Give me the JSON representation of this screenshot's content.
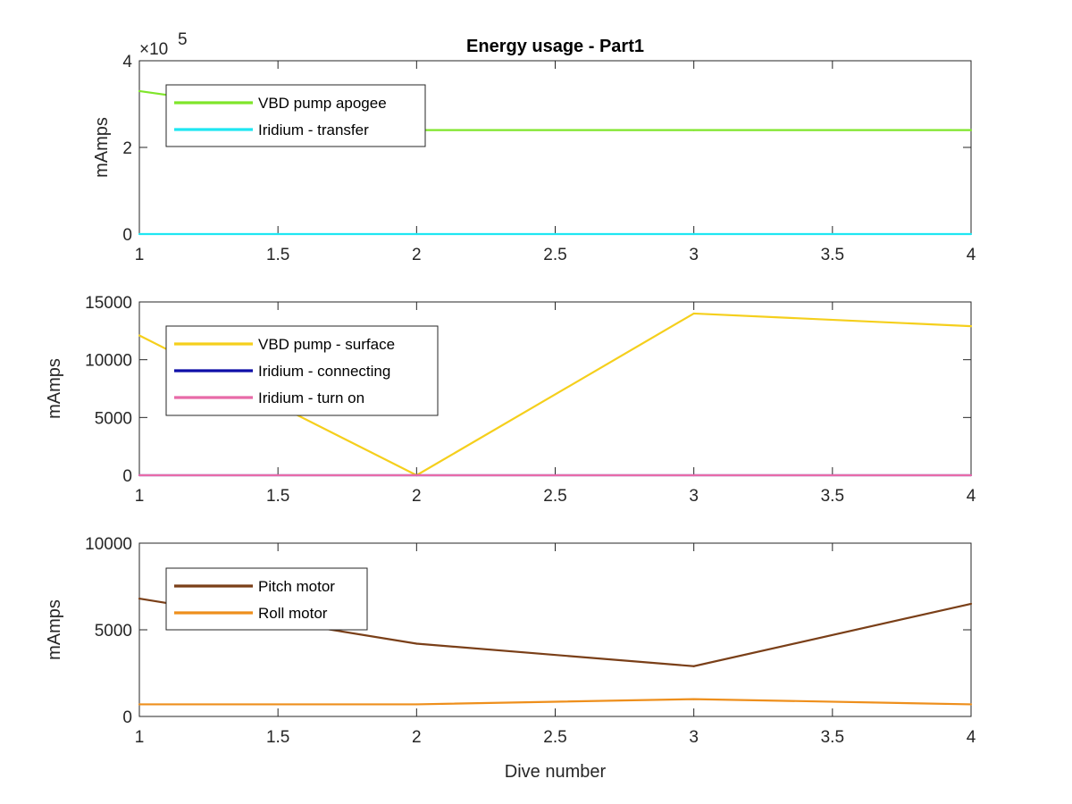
{
  "chart_data": [
    {
      "type": "line",
      "title": "Energy usage - Part1",
      "xlabel": "",
      "ylabel": "mAmps",
      "xlim": [
        1,
        4
      ],
      "ylim": [
        0,
        400000
      ],
      "x_ticks": [
        "1",
        "1.5",
        "2",
        "2.5",
        "3",
        "3.5",
        "4"
      ],
      "y_ticks": [
        "0",
        "2",
        "4"
      ],
      "y_exponent": "×10",
      "y_exponent_power": "5",
      "legend_position": "top-left",
      "x": [
        1,
        2,
        3,
        4
      ],
      "series": [
        {
          "name": "VBD pump apogee",
          "color": "#7fe52a",
          "values": [
            330000,
            240000,
            240000,
            240000
          ]
        },
        {
          "name": "Iridium - transfer",
          "color": "#1fe6f2",
          "values": [
            0,
            0,
            0,
            0
          ]
        }
      ]
    },
    {
      "type": "line",
      "title": "",
      "xlabel": "",
      "ylabel": "mAmps",
      "xlim": [
        1,
        4
      ],
      "ylim": [
        0,
        15000
      ],
      "x_ticks": [
        "1",
        "1.5",
        "2",
        "2.5",
        "3",
        "3.5",
        "4"
      ],
      "y_ticks": [
        "0",
        "5000",
        "10000",
        "15000"
      ],
      "legend_position": "top-left",
      "x": [
        1,
        2,
        3,
        4
      ],
      "series": [
        {
          "name": "VBD pump - surface",
          "color": "#f5cf1c",
          "values": [
            12100,
            0,
            14000,
            12900
          ]
        },
        {
          "name": "Iridium - connecting",
          "color": "#0f0fa8",
          "values": [
            0,
            0,
            0,
            0
          ]
        },
        {
          "name": "Iridium - turn on",
          "color": "#e86aa8",
          "values": [
            0,
            0,
            0,
            0
          ]
        }
      ]
    },
    {
      "type": "line",
      "title": "",
      "xlabel": "Dive number",
      "ylabel": "mAmps",
      "xlim": [
        1,
        4
      ],
      "ylim": [
        0,
        10000
      ],
      "x_ticks": [
        "1",
        "1.5",
        "2",
        "2.5",
        "3",
        "3.5",
        "4"
      ],
      "y_ticks": [
        "0",
        "5000",
        "10000"
      ],
      "legend_position": "top-left",
      "x": [
        1,
        2,
        3,
        4
      ],
      "series": [
        {
          "name": "Pitch motor",
          "color": "#7a3f18",
          "values": [
            6800,
            4200,
            2900,
            6500
          ]
        },
        {
          "name": "Roll motor",
          "color": "#ee8f1c",
          "values": [
            700,
            700,
            1000,
            700
          ]
        }
      ]
    }
  ]
}
